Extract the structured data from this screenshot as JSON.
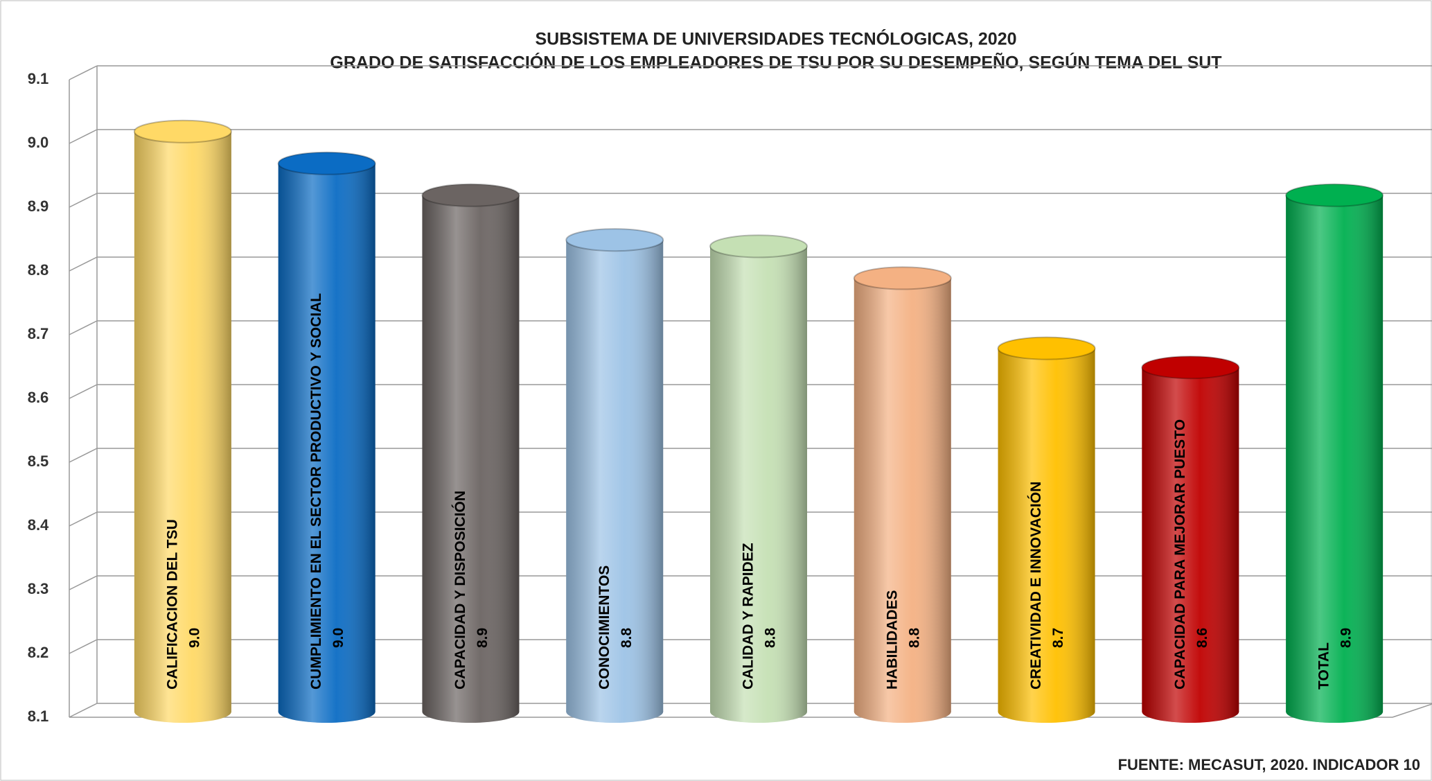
{
  "chart_data": {
    "type": "bar",
    "title": "SUBSISTEMA DE UNIVERSIDADES TECNÓLOGICAS, 2020",
    "subtitle": "GRADO DE SATISFACCIÓN DE LOS EMPLEADORES DE TSU POR SU DESEMPEÑO, SEGÚN TEMA DEL SUT",
    "source": "FUENTE: MECASUT, 2020. INDICADOR 10",
    "categories": [
      "CALIFICACION DEL TSU",
      "CUMPLIMIENTO EN EL SECTOR PRODUCTIVO Y SOCIAL",
      "CAPACIDAD Y DISPOSICIÓN",
      "CONOCIMIENTOS",
      "CALIDAD Y RAPIDEZ",
      "HABILIDADES",
      "CREATIVIDAD E INNOVACIÓN",
      "CAPACIDAD PARA MEJORAR PUESTO",
      "TOTAL"
    ],
    "values": [
      9.01,
      8.96,
      8.91,
      8.84,
      8.83,
      8.78,
      8.67,
      8.64,
      8.91
    ],
    "value_labels": [
      "9.0",
      "9.0",
      "8.9",
      "8.8",
      "8.8",
      "8.8",
      "8.7",
      "8.6",
      "8.9"
    ],
    "colors": [
      "#ffd966",
      "#0b6cc4",
      "#6b6462",
      "#9dc3e6",
      "#c5e0b4",
      "#f4b183",
      "#ffc000",
      "#c00000",
      "#00b050"
    ],
    "ylim": [
      8.1,
      9.1
    ],
    "yticks": [
      8.1,
      8.2,
      8.3,
      8.4,
      8.5,
      8.6,
      8.7,
      8.8,
      8.9,
      {
        "value": 9,
        "label": "9.0"
      },
      9.1
    ],
    "grid": true
  }
}
